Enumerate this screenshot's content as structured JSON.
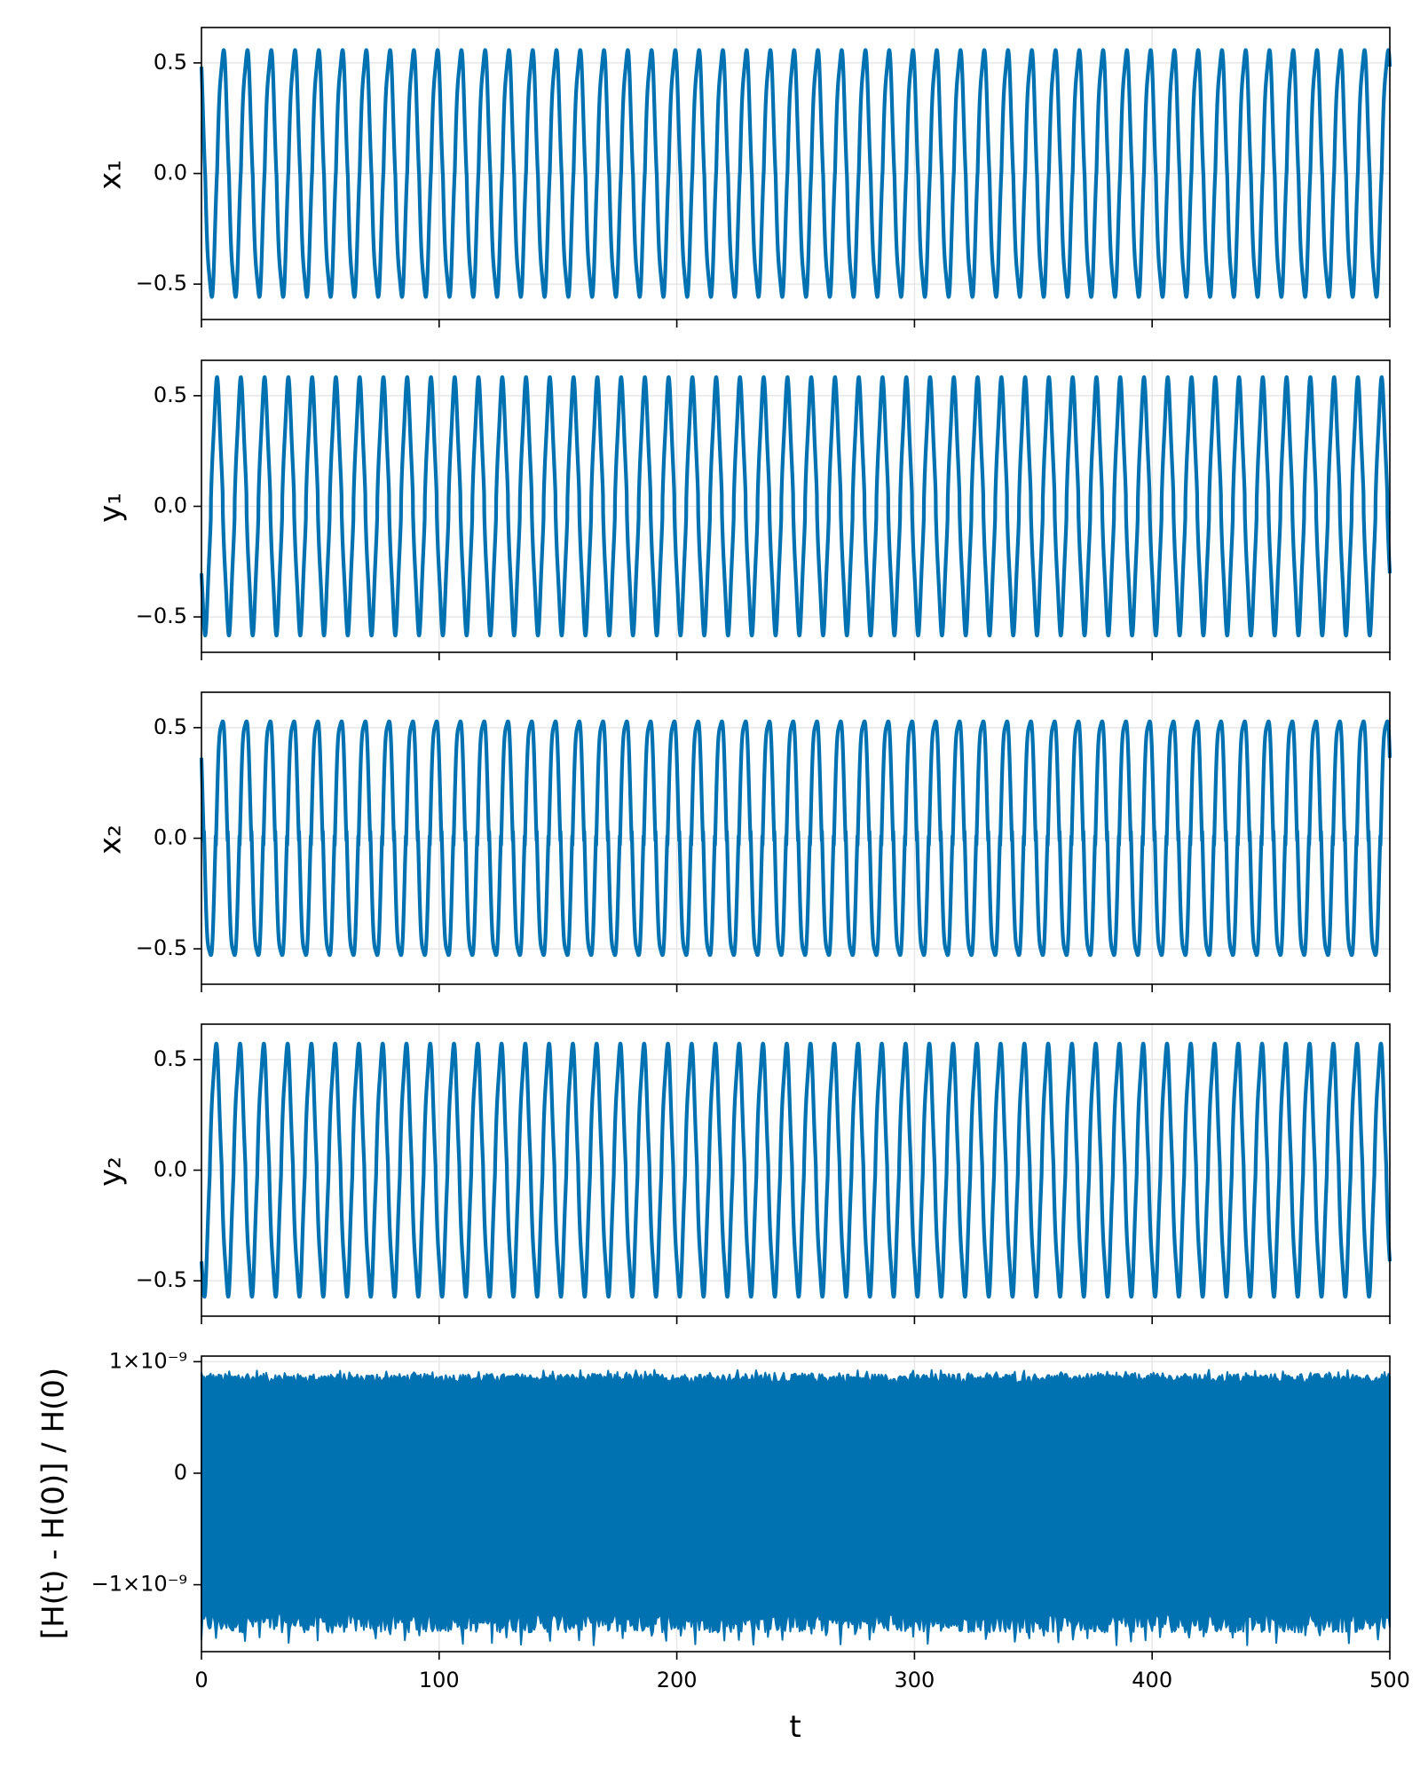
{
  "chart_data": [
    {
      "type": "line",
      "ylabel": "x₁",
      "xlim": [
        0,
        500
      ],
      "ylim": [
        -0.66,
        0.66
      ],
      "x_ticks": [
        0,
        100,
        200,
        300,
        400,
        500
      ],
      "x_tick_labels_visible": false,
      "y_ticks": [
        -0.5,
        0.0,
        0.5
      ],
      "y_tick_labels": [
        "−0.5",
        "0.0",
        "0.5"
      ],
      "grid": true,
      "color": "#0072b2",
      "series": [
        {
          "signal": "oscillation",
          "amplitude": 0.585,
          "period": 10.0,
          "phase": 0.6,
          "beat_amplitude": 0.035,
          "beat_period": 2.5,
          "x_range": [
            0,
            500
          ]
        }
      ]
    },
    {
      "type": "line",
      "ylabel": "y₁",
      "xlim": [
        0,
        500
      ],
      "ylim": [
        -0.66,
        0.66
      ],
      "x_ticks": [
        0,
        100,
        200,
        300,
        400,
        500
      ],
      "x_tick_labels_visible": false,
      "y_ticks": [
        -0.5,
        0.0,
        0.5
      ],
      "y_tick_labels": [
        "−0.5",
        "0.0",
        "0.5"
      ],
      "grid": true,
      "color": "#0072b2",
      "series": [
        {
          "signal": "oscillation",
          "amplitude": 0.585,
          "period": 10.0,
          "phase": 2.2,
          "beat_amplitude": 0.035,
          "beat_period": 2.5,
          "x_range": [
            0,
            500
          ]
        }
      ]
    },
    {
      "type": "line",
      "ylabel": "x₂",
      "xlim": [
        0,
        500
      ],
      "ylim": [
        -0.66,
        0.66
      ],
      "x_ticks": [
        0,
        100,
        200,
        300,
        400,
        500
      ],
      "x_tick_labels_visible": false,
      "y_ticks": [
        -0.5,
        0.0,
        0.5
      ],
      "y_tick_labels": [
        "−0.5",
        "0.0",
        "0.5"
      ],
      "grid": true,
      "color": "#0072b2",
      "series": [
        {
          "signal": "oscillation",
          "amplitude": 0.585,
          "period": 10.0,
          "phase": 0.9,
          "beat_amplitude": 0.035,
          "beat_period": 2.5,
          "x_range": [
            0,
            500
          ]
        }
      ]
    },
    {
      "type": "line",
      "ylabel": "y₂",
      "xlim": [
        0,
        500
      ],
      "ylim": [
        -0.66,
        0.66
      ],
      "x_ticks": [
        0,
        100,
        200,
        300,
        400,
        500
      ],
      "x_tick_labels_visible": false,
      "y_ticks": [
        -0.5,
        0.0,
        0.5
      ],
      "y_tick_labels": [
        "−0.5",
        "0.0",
        "0.5"
      ],
      "grid": true,
      "color": "#0072b2",
      "series": [
        {
          "signal": "oscillation",
          "amplitude": 0.585,
          "period": 10.0,
          "phase": 2.5,
          "beat_amplitude": 0.035,
          "beat_period": 2.5,
          "x_range": [
            0,
            500
          ]
        }
      ]
    },
    {
      "type": "area",
      "ylabel": "[H(t) - H(0)] / H(0)",
      "xlabel": "t",
      "xlim": [
        0,
        500
      ],
      "ylim": [
        -1.6e-09,
        1.05e-09
      ],
      "x_ticks": [
        0,
        100,
        200,
        300,
        400,
        500
      ],
      "x_tick_labels": [
        "0",
        "100",
        "200",
        "300",
        "400",
        "500"
      ],
      "x_tick_labels_visible": true,
      "y_ticks": [
        -1e-09,
        0,
        1e-09
      ],
      "y_tick_labels": [
        "−1×10⁻⁹",
        "0",
        "1×10⁻⁹"
      ],
      "grid": true,
      "color": "#0072b2",
      "series": [
        {
          "signal": "dense_band",
          "upper_mean": 8.5e-10,
          "upper_jitter": 6e-11,
          "lower_mean": -1.35e-09,
          "lower_jitter": 1.3e-10,
          "x_range": [
            0,
            500
          ]
        }
      ]
    }
  ]
}
